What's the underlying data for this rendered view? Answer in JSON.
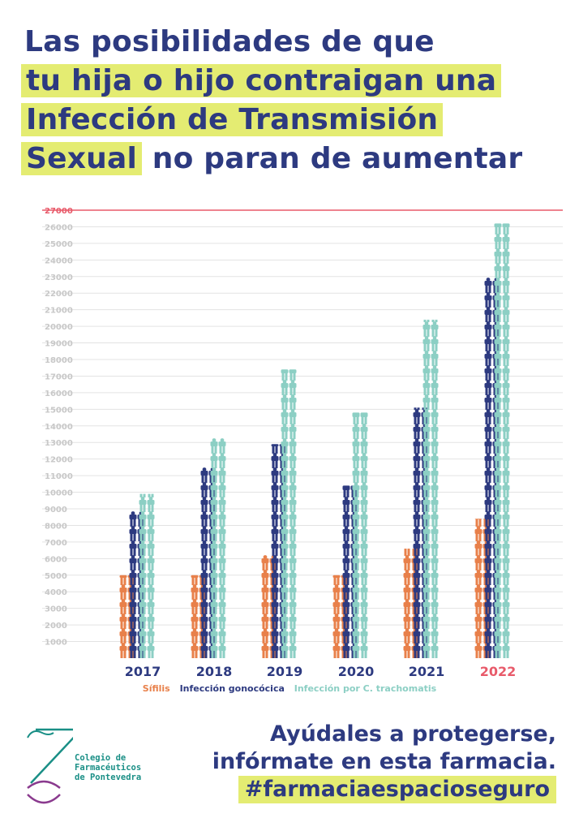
{
  "title": {
    "line1": "Las posibilidades de que",
    "line2": "tu hija o hijo contraigan una",
    "line3": "Infección de Transmisión",
    "line4_highlight": "Sexual",
    "line4_rest": " no paran de aumentar"
  },
  "chart_data": {
    "type": "bar",
    "title": "",
    "xlabel": "",
    "ylabel": "",
    "categories": [
      "2017",
      "2018",
      "2019",
      "2020",
      "2021",
      "2022"
    ],
    "highlight_category": "2022",
    "yticks": [
      1000,
      2000,
      3000,
      4000,
      5000,
      6000,
      7000,
      8000,
      9000,
      10000,
      11000,
      12000,
      13000,
      14000,
      15000,
      16000,
      17000,
      18000,
      19000,
      20000,
      21000,
      22000,
      23000,
      24000,
      25000,
      26000,
      27000
    ],
    "ylim": [
      0,
      27000
    ],
    "series": [
      {
        "name": "Sífilis",
        "color": "#e8804a",
        "values": [
          5000,
          5000,
          6100,
          5000,
          6600,
          8400
        ]
      },
      {
        "name": "Infección gonocócica",
        "color": "#2d3a80",
        "values": [
          8700,
          11300,
          12900,
          10400,
          15100,
          22900
        ]
      },
      {
        "name": "Infección por C. trachomatis",
        "color": "#8ccfc4",
        "values": [
          9900,
          13200,
          17400,
          14800,
          20400,
          26200
        ]
      }
    ],
    "legend_position": "bottom"
  },
  "colors": {
    "navy": "#2d3a80",
    "highlight": "#e4ec72",
    "orange": "#e8804a",
    "teal": "#8ccfc4",
    "red": "#e85a6a",
    "green": "#1a8f86",
    "purple": "#8a3a8e"
  },
  "tagline": {
    "line1": "Ayúdales a protegerse,",
    "line2": "infórmate en esta farmacia.",
    "hashtag": "#farmaciaespacioseguro"
  },
  "logo": {
    "line1": "Colegio de",
    "line2": "Farmacéuticos",
    "line3": "de Pontevedra"
  }
}
